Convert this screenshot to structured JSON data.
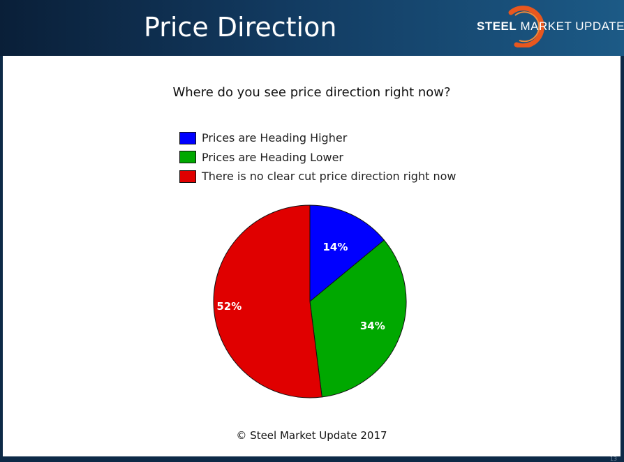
{
  "slide": {
    "title": "Price Direction",
    "logo": {
      "brand_bold": "STEEL",
      "brand_rest": " MARKET UPDATE"
    },
    "footer": "© Steel Market Update 2017",
    "page_number": "13"
  },
  "colors": {
    "higher": "#0000ff",
    "lower": "#00a800",
    "no_direction": "#e00000",
    "logo_accent": "#e8571e"
  },
  "chart_data": {
    "type": "pie",
    "title": "Where do you see price direction right now?",
    "legend_position": "top",
    "slices": [
      {
        "label": "Prices are Heading Higher",
        "value": 14,
        "display": "14%",
        "color": "#0000ff"
      },
      {
        "label": "Prices are Heading Lower",
        "value": 34,
        "display": "34%",
        "color": "#00a800"
      },
      {
        "label": "There is no clear cut price direction right now",
        "value": 52,
        "display": "52%",
        "color": "#e00000"
      }
    ]
  }
}
